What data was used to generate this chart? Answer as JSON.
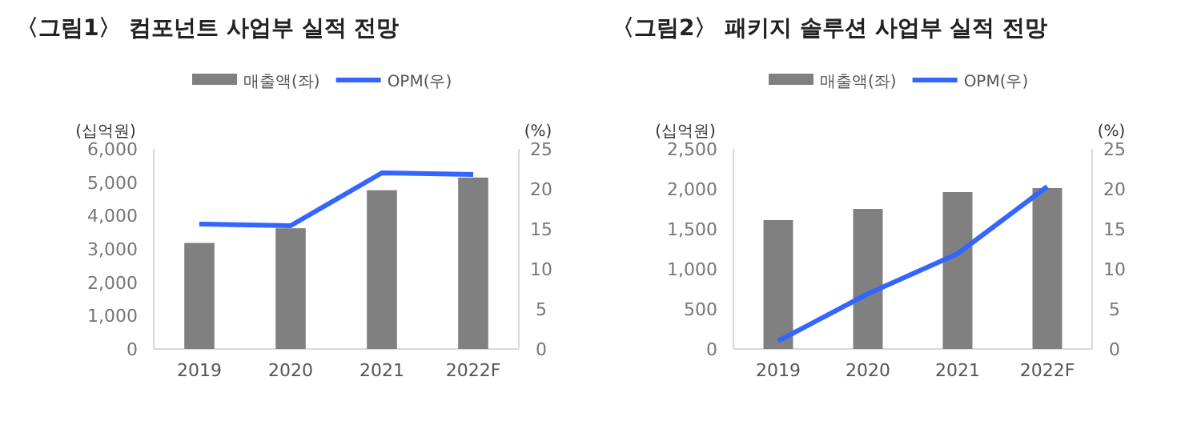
{
  "chart_data": [
    {
      "type": "bar",
      "title": "〈그림1〉 컴포넌트 사업부 실적 전망",
      "ylabel": "(십억원)",
      "y2label": "(%)",
      "categories": [
        "2019",
        "2020",
        "2021",
        "2022F"
      ],
      "legend": "top",
      "grid": false,
      "ylim": [
        0,
        6000
      ],
      "yticks": [
        {
          "value": 0,
          "label": "0"
        },
        {
          "value": 1000,
          "label": "1,000"
        },
        {
          "value": 2000,
          "label": "2,000"
        },
        {
          "value": 3000,
          "label": "3,000"
        },
        {
          "value": 4000,
          "label": "4,000"
        },
        {
          "value": 5000,
          "label": "5,000"
        },
        {
          "value": 6000,
          "label": "6,000"
        }
      ],
      "y2lim": [
        0,
        25
      ],
      "y2ticks": [
        0,
        5,
        10,
        15,
        20,
        25
      ],
      "series": [
        {
          "name": "매출액(좌)",
          "color": "#808080",
          "values": [
            3180,
            3620,
            4760,
            5140
          ]
        },
        {
          "name": "OPM(우)",
          "type": "line",
          "axis": "y2",
          "color": "#3366ff",
          "values": [
            15.6,
            15.4,
            22.0,
            21.8
          ]
        }
      ]
    },
    {
      "type": "bar",
      "title": "〈그림2〉 패키지 솔루션 사업부 실적 전망",
      "ylabel": "(십억원)",
      "y2label": "(%)",
      "categories": [
        "2019",
        "2020",
        "2021",
        "2022F"
      ],
      "legend": "top",
      "grid": false,
      "ylim": [
        0,
        2500
      ],
      "yticks": [
        {
          "value": 0,
          "label": "0"
        },
        {
          "value": 500,
          "label": "500"
        },
        {
          "value": 1000,
          "label": "1,000"
        },
        {
          "value": 1500,
          "label": "1,500"
        },
        {
          "value": 2000,
          "label": "2,000"
        },
        {
          "value": 2500,
          "label": "2,500"
        }
      ],
      "y2lim": [
        0,
        25
      ],
      "y2ticks": [
        0,
        5,
        10,
        15,
        20,
        25
      ],
      "series": [
        {
          "name": "매출액(좌)",
          "color": "#808080",
          "values": [
            1610,
            1750,
            1960,
            2010
          ]
        },
        {
          "name": "OPM(우)",
          "type": "line",
          "axis": "y2",
          "color": "#3366ff",
          "values": [
            1.0,
            6.9,
            11.9,
            20.3
          ]
        }
      ]
    }
  ]
}
